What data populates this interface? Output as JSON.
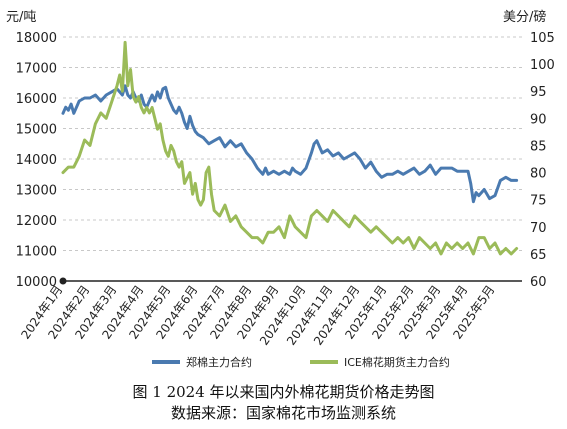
{
  "chart_data": {
    "type": "line",
    "title": "图 1    2024 年以来国内外棉花期货价格走势图",
    "source": "数据来源：国家棉花市场监测系统",
    "y_left_label": "元/吨",
    "y_right_label": "美分/磅",
    "y_left_range": [
      10000,
      18000
    ],
    "y_right_range": [
      60,
      105
    ],
    "y_left_ticks": [
      "10000",
      "11000",
      "12000",
      "13000",
      "14000",
      "15000",
      "16000",
      "17000",
      "18000"
    ],
    "y_right_ticks": [
      "60",
      "65",
      "70",
      "75",
      "80",
      "85",
      "90",
      "95",
      "100",
      "105"
    ],
    "x_range": [
      0,
      17
    ],
    "x_ticks": [
      "2024年1月",
      "2024年2月",
      "2024年3月",
      "2024年4月",
      "2024年5月",
      "2024年6月",
      "2024年7月",
      "2024年8月",
      "2024年9月",
      "2024年10月",
      "2024年11月",
      "2024年12月",
      "2025年1月",
      "2025年2月",
      "2025年3月",
      "2025年4月",
      "2025年5月"
    ],
    "grid": "horizontal-dashed",
    "legend_position": "bottom",
    "series": [
      {
        "name": "郑棉主力合约",
        "axis": "left",
        "color": "#4a7ab0",
        "x": [
          0.0,
          0.1,
          0.2,
          0.3,
          0.4,
          0.5,
          0.6,
          0.8,
          1.0,
          1.2,
          1.4,
          1.6,
          1.8,
          2.0,
          2.1,
          2.2,
          2.3,
          2.4,
          2.5,
          2.6,
          2.7,
          2.8,
          2.9,
          3.0,
          3.1,
          3.2,
          3.3,
          3.4,
          3.5,
          3.6,
          3.7,
          3.8,
          3.9,
          4.0,
          4.1,
          4.2,
          4.3,
          4.4,
          4.5,
          4.6,
          4.7,
          4.8,
          4.9,
          5.0,
          5.2,
          5.4,
          5.6,
          5.8,
          6.0,
          6.2,
          6.4,
          6.6,
          6.8,
          7.0,
          7.2,
          7.4,
          7.5,
          7.6,
          7.8,
          8.0,
          8.2,
          8.4,
          8.5,
          8.6,
          8.8,
          9.0,
          9.2,
          9.3,
          9.4,
          9.6,
          9.8,
          10.0,
          10.2,
          10.4,
          10.6,
          10.8,
          11.0,
          11.2,
          11.4,
          11.6,
          11.8,
          12.0,
          12.2,
          12.4,
          12.6,
          12.8,
          13.0,
          13.2,
          13.4,
          13.6,
          13.8,
          14.0,
          14.2,
          14.4,
          14.6,
          14.8,
          15.0,
          15.1,
          15.2,
          15.3,
          15.4,
          15.6,
          15.8,
          16.0,
          16.2,
          16.4,
          16.6,
          16.8
        ],
        "values": [
          15500,
          15700,
          15600,
          15800,
          15500,
          15700,
          15900,
          16000,
          16000,
          16100,
          15900,
          16100,
          16200,
          16300,
          16200,
          16100,
          16400,
          16100,
          16000,
          16200,
          16000,
          15900,
          16100,
          15800,
          15700,
          15900,
          16100,
          15900,
          16200,
          16000,
          16300,
          16350,
          16000,
          15800,
          15600,
          15500,
          15700,
          15500,
          15200,
          15000,
          15400,
          15100,
          14900,
          14800,
          14700,
          14500,
          14600,
          14700,
          14400,
          14600,
          14400,
          14500,
          14200,
          14000,
          13700,
          13500,
          13700,
          13500,
          13600,
          13500,
          13600,
          13500,
          13700,
          13600,
          13500,
          13700,
          14200,
          14500,
          14600,
          14200,
          14300,
          14100,
          14200,
          14000,
          14100,
          14200,
          14000,
          13700,
          13900,
          13600,
          13400,
          13500,
          13500,
          13600,
          13500,
          13600,
          13700,
          13500,
          13600,
          13800,
          13500,
          13700,
          13700,
          13700,
          13600,
          13600,
          13600,
          13200,
          12600,
          12900,
          12800,
          13000,
          12700,
          12800,
          13300,
          13400,
          13300,
          13300
        ]
      },
      {
        "name": "ICE棉花期货主力合约",
        "axis": "right",
        "color": "#9bbb59",
        "x": [
          0.0,
          0.2,
          0.4,
          0.5,
          0.6,
          0.8,
          1.0,
          1.1,
          1.2,
          1.4,
          1.6,
          1.8,
          2.0,
          2.1,
          2.2,
          2.3,
          2.4,
          2.5,
          2.6,
          2.7,
          2.8,
          2.9,
          3.0,
          3.1,
          3.2,
          3.3,
          3.4,
          3.5,
          3.6,
          3.7,
          3.8,
          3.9,
          4.0,
          4.1,
          4.2,
          4.3,
          4.4,
          4.5,
          4.6,
          4.7,
          4.8,
          4.9,
          5.0,
          5.1,
          5.2,
          5.3,
          5.4,
          5.5,
          5.6,
          5.8,
          6.0,
          6.2,
          6.4,
          6.6,
          6.8,
          7.0,
          7.2,
          7.4,
          7.6,
          7.8,
          8.0,
          8.2,
          8.4,
          8.6,
          8.8,
          9.0,
          9.2,
          9.4,
          9.6,
          9.8,
          10.0,
          10.2,
          10.4,
          10.6,
          10.8,
          11.0,
          11.2,
          11.4,
          11.6,
          11.8,
          12.0,
          12.2,
          12.4,
          12.6,
          12.8,
          13.0,
          13.2,
          13.4,
          13.6,
          13.8,
          14.0,
          14.2,
          14.4,
          14.6,
          14.8,
          15.0,
          15.2,
          15.4,
          15.6,
          15.8,
          16.0,
          16.2,
          16.4,
          16.6,
          16.8
        ],
        "values": [
          80,
          81,
          81,
          82,
          83,
          86,
          85,
          87,
          89,
          91,
          90,
          93,
          96,
          98,
          95,
          104,
          96,
          99,
          94,
          93,
          94,
          92,
          91,
          92,
          91,
          92,
          90,
          88,
          89,
          86,
          84,
          83,
          85,
          84,
          82,
          81,
          82,
          78,
          79,
          80,
          76,
          78,
          75,
          74,
          75,
          80,
          81,
          76,
          73,
          72,
          74,
          71,
          72,
          70,
          69,
          68,
          68,
          67,
          69,
          69,
          70,
          68,
          72,
          70,
          69,
          68,
          72,
          73,
          72,
          71,
          73,
          72,
          71,
          70,
          72,
          71,
          70,
          69,
          70,
          69,
          68,
          67,
          68,
          67,
          68,
          66,
          68,
          67,
          66,
          67,
          65,
          67,
          66,
          67,
          66,
          67,
          65,
          68,
          68,
          66,
          67,
          65,
          66,
          65,
          66
        ]
      }
    ]
  }
}
